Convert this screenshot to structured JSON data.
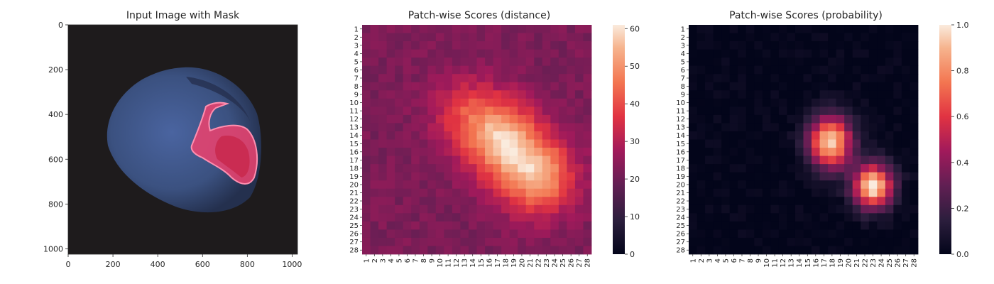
{
  "chart_data": [
    {
      "type": "image",
      "title": "Input Image with Mask",
      "xticks": [
        0,
        200,
        400,
        600,
        800,
        1000
      ],
      "yticks": [
        0,
        200,
        400,
        600,
        800,
        1000
      ],
      "xlim": [
        0,
        1024
      ],
      "ylim": [
        1024,
        0
      ],
      "colors": {
        "background": "#1e1b1c",
        "object": "#3b5180",
        "object_shadow": "#26304f",
        "mask_overlay": "#e8426e",
        "mask_edge": "#ff8fb0"
      }
    },
    {
      "type": "heatmap",
      "title": "Patch-wise Scores (distance)",
      "rows": 28,
      "cols": 28,
      "row_labels": [
        "1",
        "2",
        "3",
        "4",
        "5",
        "6",
        "7",
        "8",
        "9",
        "10",
        "11",
        "12",
        "13",
        "14",
        "15",
        "16",
        "17",
        "18",
        "19",
        "20",
        "21",
        "22",
        "23",
        "24",
        "25",
        "26",
        "27",
        "28"
      ],
      "col_labels": [
        "1",
        "2",
        "3",
        "4",
        "5",
        "6",
        "7",
        "8",
        "9",
        "10",
        "11",
        "12",
        "13",
        "14",
        "15",
        "16",
        "17",
        "18",
        "19",
        "20",
        "21",
        "22",
        "23",
        "24",
        "25",
        "26",
        "27",
        "28"
      ],
      "colormap": "rocket",
      "vmin": 0,
      "vmax": 61,
      "colorbar_ticks": [
        0,
        10,
        20,
        30,
        40,
        50,
        60
      ],
      "components": [
        {
          "amp": 31,
          "center_col": 17.5,
          "center_row": 14.5,
          "sigma_col": 3.2,
          "sigma_row": 3.3
        },
        {
          "amp": 30,
          "center_col": 22.0,
          "center_row": 19.0,
          "sigma_col": 3.1,
          "sigma_row": 3.2
        },
        {
          "amp": 13,
          "center_col": 13.0,
          "center_row": 11.0,
          "sigma_col": 3.0,
          "sigma_row": 3.0
        }
      ],
      "base_value": 22,
      "noise": 2.5
    },
    {
      "type": "heatmap",
      "title": "Patch-wise Scores (probability)",
      "rows": 28,
      "cols": 28,
      "row_labels": [
        "1",
        "2",
        "3",
        "4",
        "5",
        "6",
        "7",
        "8",
        "9",
        "10",
        "11",
        "12",
        "13",
        "14",
        "15",
        "16",
        "17",
        "18",
        "19",
        "20",
        "21",
        "22",
        "23",
        "24",
        "25",
        "26",
        "27",
        "28"
      ],
      "col_labels": [
        "1",
        "2",
        "3",
        "4",
        "5",
        "6",
        "7",
        "8",
        "9",
        "10",
        "11",
        "12",
        "13",
        "14",
        "15",
        "16",
        "17",
        "18",
        "19",
        "20",
        "21",
        "22",
        "23",
        "24",
        "25",
        "26",
        "27",
        "28"
      ],
      "colormap": "rocket",
      "vmin": 0,
      "vmax": 1,
      "colorbar_ticks": [
        0.0,
        0.2,
        0.4,
        0.6,
        0.8,
        1.0
      ],
      "components": [
        {
          "amp": 0.95,
          "center_col": 17.8,
          "center_row": 14.8,
          "sigma_col": 1.9,
          "sigma_row": 2.3
        },
        {
          "amp": 1.0,
          "center_col": 23.0,
          "center_row": 20.2,
          "sigma_col": 1.7,
          "sigma_row": 1.9
        }
      ],
      "base_value": 0,
      "noise": 0.04
    }
  ]
}
